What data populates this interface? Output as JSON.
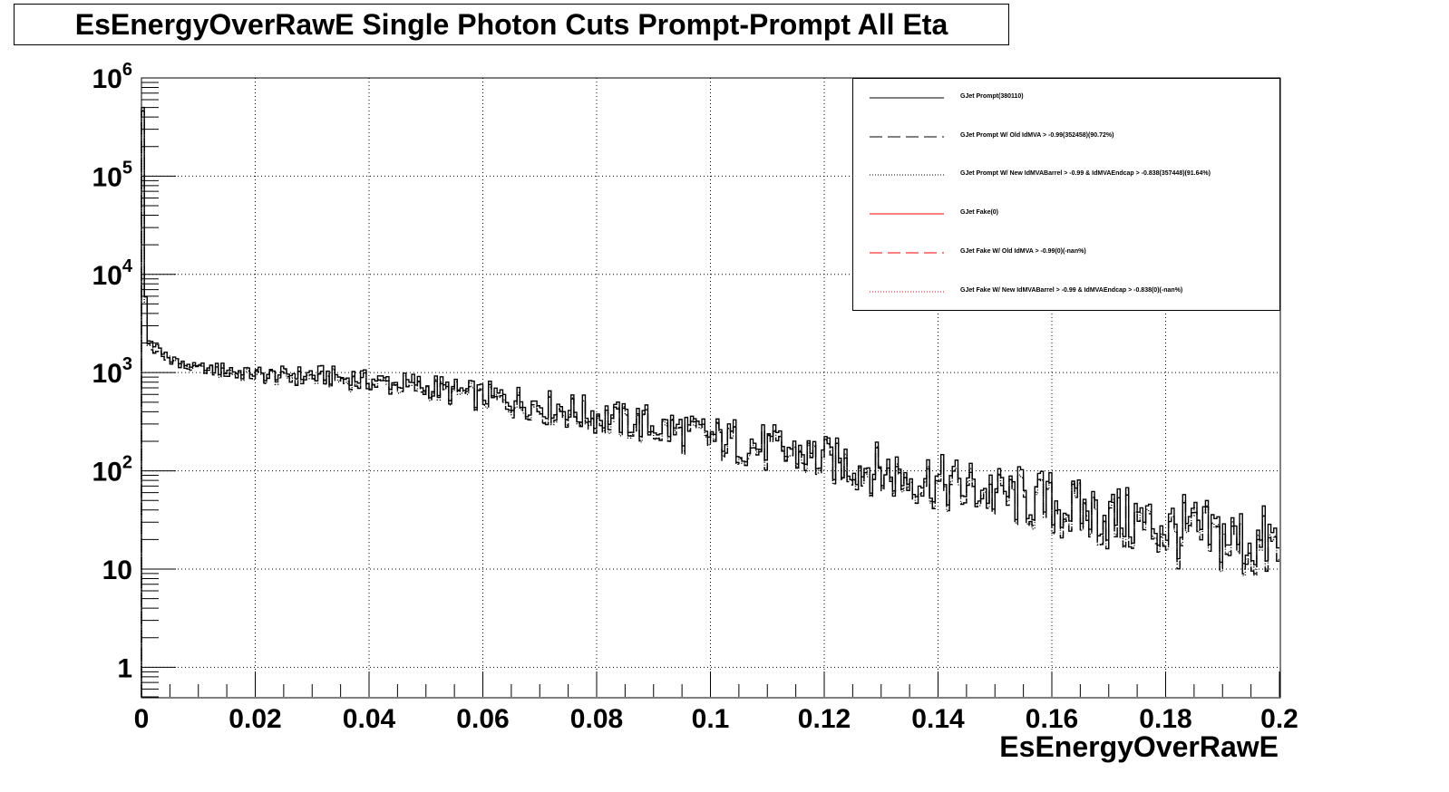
{
  "chart_data": {
    "type": "line",
    "title": "EsEnergyOverRawE Single Photon Cuts Prompt-Prompt All Eta",
    "xlabel": "EsEnergyOverRawE",
    "ylabel": "",
    "xlim": [
      0,
      0.2
    ],
    "ylim": [
      0.5,
      1000000
    ],
    "y_scale": "log",
    "grid": true,
    "legend_position": "top-right",
    "x_ticks": [
      0,
      0.02,
      0.04,
      0.06,
      0.08,
      0.1,
      0.12,
      0.14,
      0.16,
      0.18,
      0.2
    ],
    "x_tick_labels": [
      "0",
      "0.02",
      "0.04",
      "0.06",
      "0.08",
      "0.1",
      "0.12",
      "0.14",
      "0.16",
      "0.18",
      "0.2"
    ],
    "y_ticks": [
      1,
      10,
      100,
      1000,
      10000,
      100000,
      1000000
    ],
    "y_tick_labels": [
      {
        "base": "1",
        "exp": ""
      },
      {
        "base": "10",
        "exp": ""
      },
      {
        "base": "10",
        "exp": "2"
      },
      {
        "base": "10",
        "exp": "3"
      },
      {
        "base": "10",
        "exp": "4"
      },
      {
        "base": "10",
        "exp": "5"
      },
      {
        "base": "10",
        "exp": "6"
      }
    ],
    "series": [
      {
        "name": "GJet Prompt(380110)",
        "color": "#000000",
        "style": "solid",
        "points": [
          [
            0,
            500000
          ],
          [
            0.0005,
            15000
          ],
          [
            0.001,
            2200
          ],
          [
            0.003,
            1700
          ],
          [
            0.006,
            1350
          ],
          [
            0.01,
            1150
          ],
          [
            0.02,
            1000
          ],
          [
            0.03,
            950
          ],
          [
            0.04,
            860
          ],
          [
            0.05,
            740
          ],
          [
            0.06,
            600
          ],
          [
            0.07,
            480
          ],
          [
            0.08,
            380
          ],
          [
            0.09,
            300
          ],
          [
            0.1,
            235
          ],
          [
            0.11,
            180
          ],
          [
            0.12,
            140
          ],
          [
            0.13,
            105
          ],
          [
            0.14,
            82
          ],
          [
            0.15,
            63
          ],
          [
            0.16,
            48
          ],
          [
            0.17,
            37
          ],
          [
            0.18,
            28
          ],
          [
            0.19,
            22
          ],
          [
            0.2,
            18
          ]
        ]
      },
      {
        "name": "GJet Prompt W/ Old IdMVA > -0.99(352458)(90.72%)",
        "color": "#000000",
        "style": "dashed",
        "points": [
          [
            0,
            460000
          ],
          [
            0.0005,
            13500
          ],
          [
            0.001,
            2000
          ],
          [
            0.003,
            1550
          ],
          [
            0.006,
            1250
          ],
          [
            0.01,
            1060
          ],
          [
            0.02,
            920
          ],
          [
            0.03,
            870
          ],
          [
            0.04,
            790
          ],
          [
            0.05,
            670
          ],
          [
            0.06,
            540
          ],
          [
            0.07,
            430
          ],
          [
            0.08,
            340
          ],
          [
            0.09,
            265
          ],
          [
            0.1,
            205
          ],
          [
            0.11,
            158
          ],
          [
            0.12,
            122
          ],
          [
            0.13,
            92
          ],
          [
            0.14,
            70
          ],
          [
            0.15,
            54
          ],
          [
            0.16,
            41
          ],
          [
            0.17,
            31
          ],
          [
            0.18,
            23
          ],
          [
            0.19,
            18
          ],
          [
            0.2,
            14
          ]
        ]
      },
      {
        "name": "GJet Prompt W/ New IdMVABarrel > -0.99 & IdMVAEndcap > -0.838(357448)(91.64%)",
        "color": "#000000",
        "style": "dotted",
        "points": [
          [
            0,
            465000
          ],
          [
            0.0005,
            13700
          ],
          [
            0.001,
            2020
          ],
          [
            0.003,
            1570
          ],
          [
            0.006,
            1260
          ],
          [
            0.01,
            1070
          ],
          [
            0.02,
            930
          ],
          [
            0.03,
            880
          ],
          [
            0.04,
            800
          ],
          [
            0.05,
            680
          ],
          [
            0.06,
            548
          ],
          [
            0.07,
            436
          ],
          [
            0.08,
            345
          ],
          [
            0.09,
            270
          ],
          [
            0.1,
            208
          ],
          [
            0.11,
            160
          ],
          [
            0.12,
            124
          ],
          [
            0.13,
            94
          ],
          [
            0.14,
            72
          ],
          [
            0.15,
            55
          ],
          [
            0.16,
            42
          ],
          [
            0.17,
            32
          ],
          [
            0.18,
            24
          ],
          [
            0.19,
            18.5
          ],
          [
            0.2,
            14.5
          ]
        ]
      },
      {
        "name": "GJet Fake(0)",
        "color": "#ff0000",
        "style": "solid",
        "points": []
      },
      {
        "name": "GJet Fake W/ Old IdMVA > -0.99(0)(-nan%)",
        "color": "#ff0000",
        "style": "dashed",
        "points": []
      },
      {
        "name": "GJet Fake W/ New IdMVABarrel > -0.99 & IdMVAEndcap > -0.838(0)(-nan%)",
        "color": "#ff0000",
        "style": "dotted",
        "points": []
      }
    ]
  }
}
